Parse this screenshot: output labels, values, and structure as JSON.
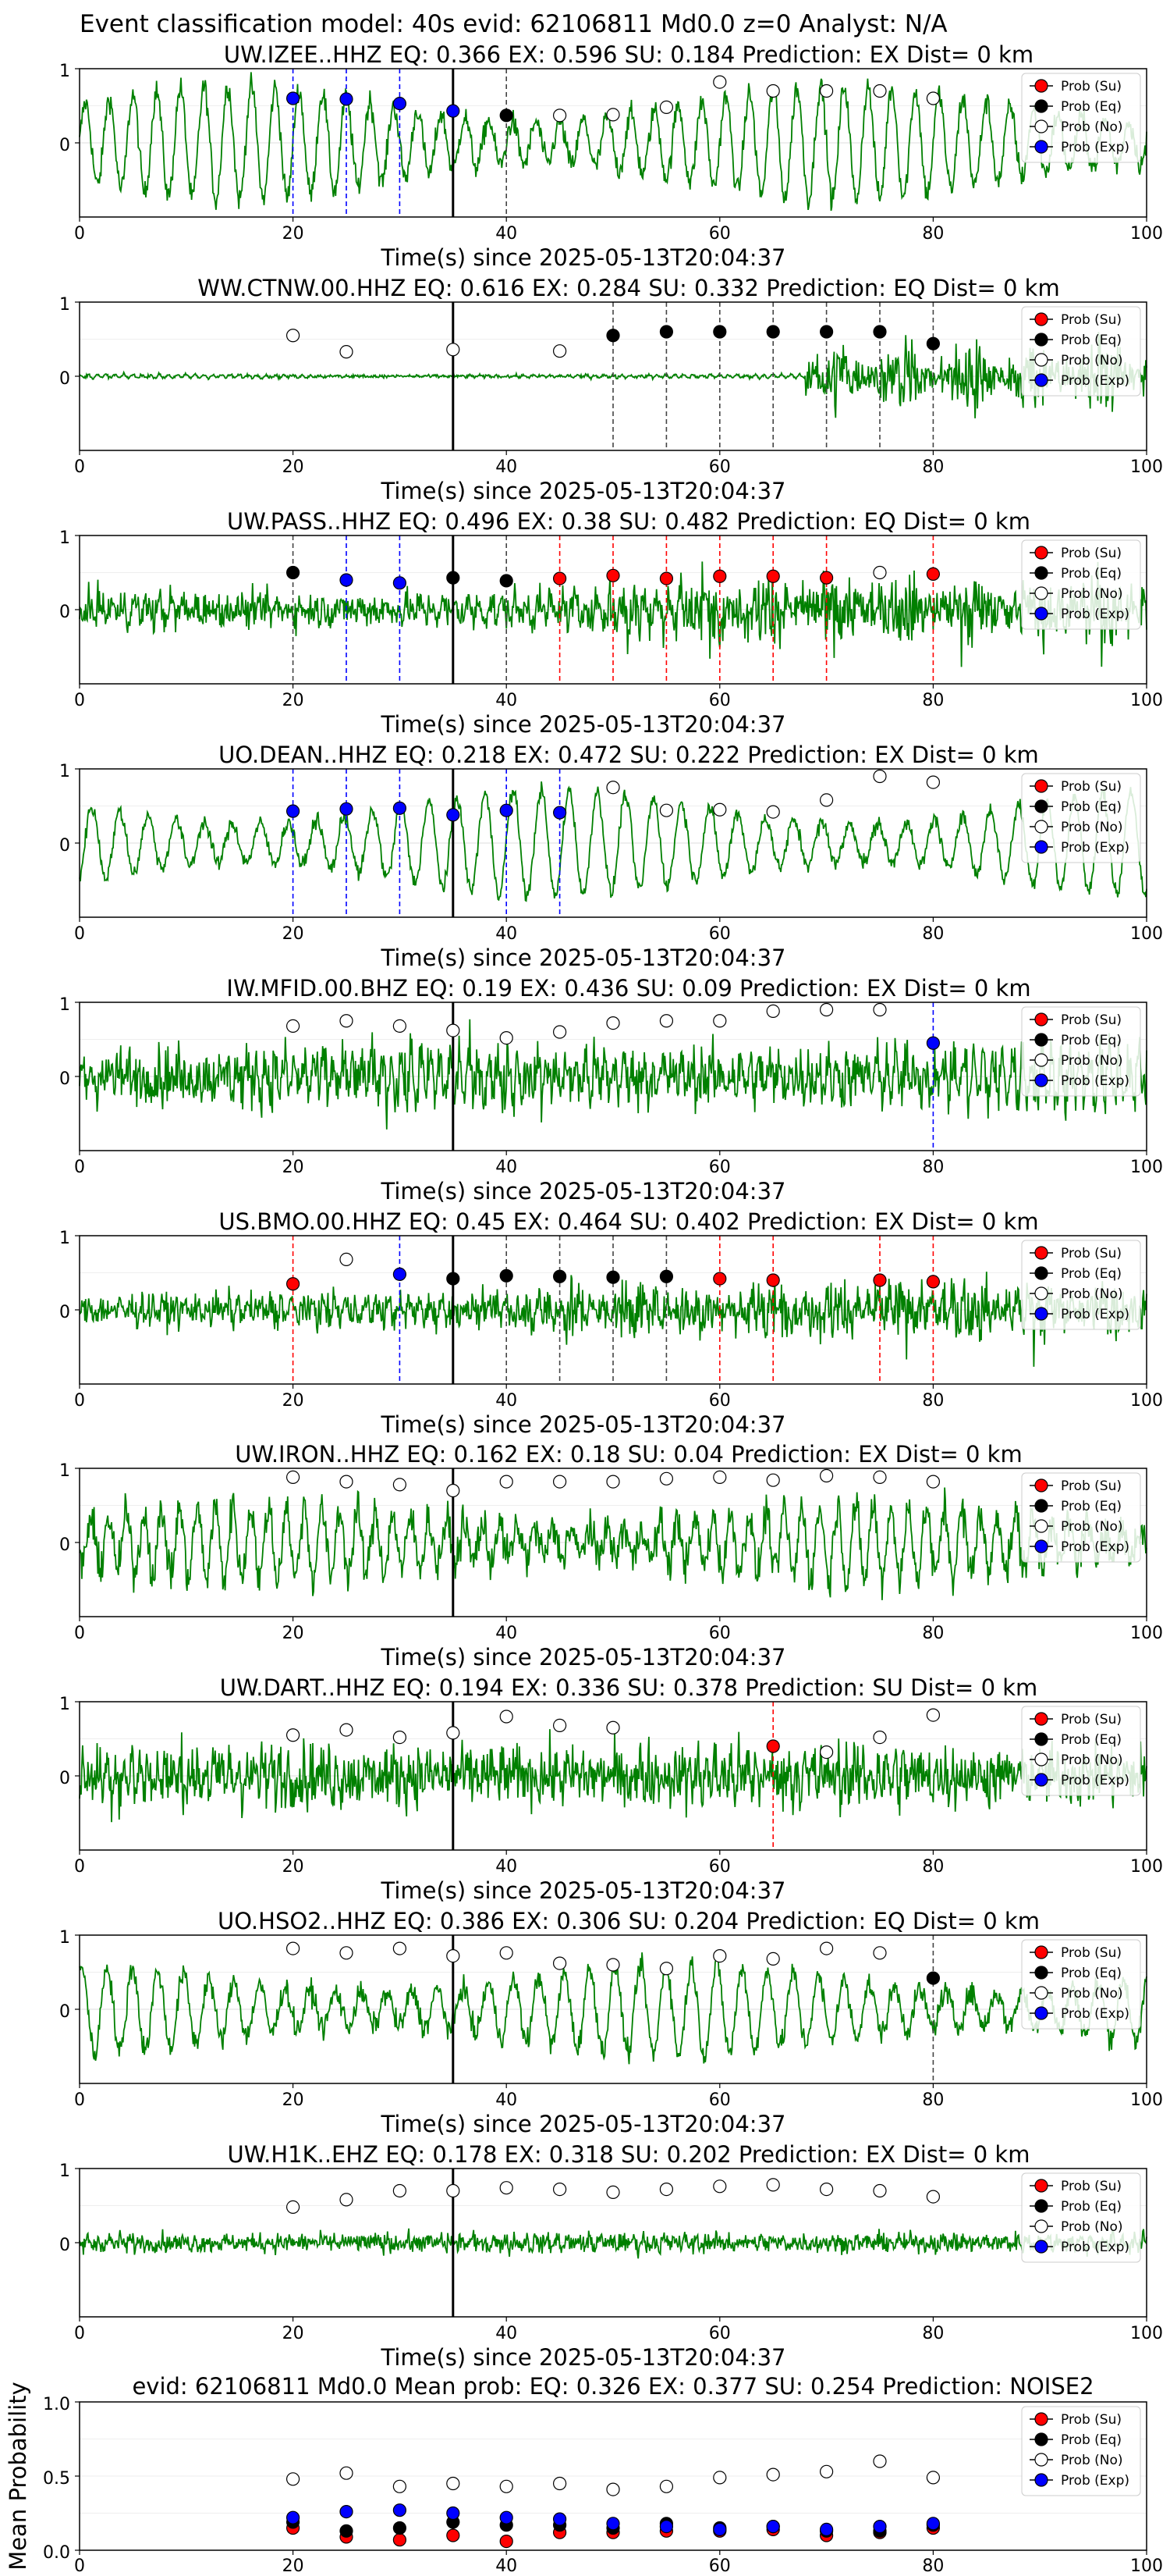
{
  "figure": {
    "suptitle": "Event classification model: 40s evid: 62106811 Md0.0 z=0 Analyst: N/A",
    "colors": {
      "waveform": "#008000",
      "su": "#ff0000",
      "eq": "#000000",
      "no": "#ffffff",
      "exp": "#0000ff",
      "axis": "#000000",
      "grid": "#dddddd"
    },
    "legend_entries": [
      "Prob (Su)",
      "Prob (Eq)",
      "Prob (No)",
      "Prob (Exp)"
    ]
  },
  "chart_data": [
    {
      "type": "line",
      "title": "UW.IZEE..HHZ   EQ: 0.366  EX: 0.596  SU: 0.184   Prediction: EX    Dist= 0 km",
      "xlabel": "Time(s) since 2025-05-13T20:04:37",
      "xlim": [
        0,
        100
      ],
      "ylim": [
        -1,
        1
      ],
      "x_ticks": [
        0,
        20,
        40,
        60,
        80,
        100
      ],
      "y_ticks": [
        1,
        0
      ],
      "legend_position": "top-right",
      "event_line_x": 35,
      "waveform": {
        "amplitude": 0.7,
        "noise": 0.15,
        "freq": 0.45,
        "clip_low": -0.98
      },
      "points": {
        "x": [
          20,
          25,
          30,
          35,
          40,
          45,
          50,
          55,
          60,
          65,
          70,
          75,
          80
        ],
        "y": [
          0.6,
          0.59,
          0.53,
          0.43,
          0.37,
          0.37,
          0.38,
          0.48,
          0.82,
          0.7,
          0.7,
          0.7,
          0.6
        ],
        "class": [
          "exp",
          "exp",
          "exp",
          "exp",
          "eq",
          "no",
          "no",
          "no",
          "no",
          "no",
          "no",
          "no",
          "no"
        ]
      },
      "dashed_lines": [
        {
          "x": 20,
          "class": "exp"
        },
        {
          "x": 25,
          "class": "exp"
        },
        {
          "x": 30,
          "class": "exp"
        },
        {
          "x": 40,
          "class": "eq"
        }
      ]
    },
    {
      "type": "line",
      "title": "WW.CTNW.00.HHZ   EQ: 0.616  EX: 0.284  SU: 0.332   Prediction: EQ    Dist= 0 km",
      "xlabel": "Time(s) since 2025-05-13T20:04:37",
      "xlim": [
        0,
        100
      ],
      "ylim": [
        -1,
        1
      ],
      "x_ticks": [
        0,
        20,
        40,
        60,
        80,
        100
      ],
      "y_ticks": [
        1,
        0
      ],
      "legend_position": "top-right",
      "event_line_x": 35,
      "waveform": {
        "amplitude": 0.02,
        "noise": 0.02,
        "freq": 1.2,
        "burst_start": 68,
        "burst_amp": 0.35,
        "clip_low": -0.98
      },
      "points": {
        "x": [
          20,
          25,
          35,
          45,
          50,
          55,
          60,
          65,
          70,
          75,
          80
        ],
        "y": [
          0.55,
          0.33,
          0.36,
          0.34,
          0.55,
          0.6,
          0.6,
          0.6,
          0.6,
          0.6,
          0.44
        ],
        "class": [
          "no",
          "no",
          "no",
          "no",
          "eq",
          "eq",
          "eq",
          "eq",
          "eq",
          "eq",
          "eq"
        ]
      },
      "dashed_lines": [
        {
          "x": 50,
          "class": "eq"
        },
        {
          "x": 55,
          "class": "eq"
        },
        {
          "x": 60,
          "class": "eq"
        },
        {
          "x": 65,
          "class": "eq"
        },
        {
          "x": 70,
          "class": "eq"
        },
        {
          "x": 75,
          "class": "eq"
        },
        {
          "x": 80,
          "class": "eq"
        }
      ]
    },
    {
      "type": "line",
      "title": "UW.PASS..HHZ   EQ: 0.496  EX: 0.38  SU: 0.482   Prediction: EQ    Dist= 0 km",
      "xlabel": "Time(s) since 2025-05-13T20:04:37",
      "xlim": [
        0,
        100
      ],
      "ylim": [
        -1,
        1
      ],
      "x_ticks": [
        0,
        20,
        40,
        60,
        80,
        100
      ],
      "y_ticks": [
        1,
        0
      ],
      "legend_position": "top-right",
      "event_line_x": 35,
      "waveform": {
        "amplitude": 0.12,
        "noise": 0.22,
        "freq": 0.9,
        "burst_start": 48,
        "burst_amp": 0.3,
        "clip_low": -0.98
      },
      "points": {
        "x": [
          20,
          25,
          30,
          35,
          40,
          45,
          50,
          55,
          60,
          65,
          70,
          75,
          80
        ],
        "y": [
          0.5,
          0.4,
          0.36,
          0.43,
          0.39,
          0.42,
          0.46,
          0.42,
          0.45,
          0.45,
          0.43,
          0.5,
          0.48
        ],
        "class": [
          "eq",
          "exp",
          "exp",
          "eq",
          "eq",
          "su",
          "su",
          "su",
          "su",
          "su",
          "su",
          "no",
          "su"
        ]
      },
      "dashed_lines": [
        {
          "x": 20,
          "class": "eq"
        },
        {
          "x": 25,
          "class": "exp"
        },
        {
          "x": 30,
          "class": "exp"
        },
        {
          "x": 40,
          "class": "eq"
        },
        {
          "x": 45,
          "class": "su"
        },
        {
          "x": 50,
          "class": "su"
        },
        {
          "x": 55,
          "class": "su"
        },
        {
          "x": 60,
          "class": "su"
        },
        {
          "x": 65,
          "class": "su"
        },
        {
          "x": 70,
          "class": "su"
        },
        {
          "x": 80,
          "class": "su"
        }
      ]
    },
    {
      "type": "line",
      "title": "UO.DEAN..HHZ   EQ: 0.218  EX: 0.472  SU: 0.222   Prediction: EX    Dist= 0 km",
      "xlabel": "Time(s) since 2025-05-13T20:04:37",
      "xlim": [
        0,
        100
      ],
      "ylim": [
        -1,
        1
      ],
      "x_ticks": [
        0,
        20,
        40,
        60,
        80,
        100
      ],
      "y_ticks": [
        1,
        0
      ],
      "legend_position": "top-right",
      "event_line_x": 35,
      "waveform": {
        "amplitude": 0.65,
        "noise": 0.1,
        "freq": 0.38,
        "clip_low": -0.98
      },
      "points": {
        "x": [
          20,
          25,
          30,
          35,
          40,
          45,
          50,
          55,
          60,
          65,
          70,
          75,
          80
        ],
        "y": [
          0.43,
          0.46,
          0.47,
          0.38,
          0.44,
          0.41,
          0.75,
          0.44,
          0.45,
          0.42,
          0.58,
          0.9,
          0.82
        ],
        "class": [
          "exp",
          "exp",
          "exp",
          "exp",
          "exp",
          "exp",
          "no",
          "no",
          "no",
          "no",
          "no",
          "no",
          "no"
        ]
      },
      "dashed_lines": [
        {
          "x": 20,
          "class": "exp"
        },
        {
          "x": 25,
          "class": "exp"
        },
        {
          "x": 30,
          "class": "exp"
        },
        {
          "x": 40,
          "class": "exp"
        },
        {
          "x": 45,
          "class": "exp"
        }
      ]
    },
    {
      "type": "line",
      "title": "IW.MFID.00.BHZ   EQ: 0.19  EX: 0.436  SU: 0.09   Prediction: EX    Dist= 0 km",
      "xlabel": "Time(s) since 2025-05-13T20:04:37",
      "xlim": [
        0,
        100
      ],
      "ylim": [
        -1,
        1
      ],
      "x_ticks": [
        0,
        20,
        40,
        60,
        80,
        100
      ],
      "y_ticks": [
        1,
        0
      ],
      "legend_position": "top-right",
      "event_line_x": 35,
      "waveform": {
        "amplitude": 0.25,
        "noise": 0.35,
        "freq": 1.1,
        "clip_low": -0.98
      },
      "points": {
        "x": [
          20,
          25,
          30,
          35,
          40,
          45,
          50,
          55,
          60,
          65,
          70,
          75,
          80
        ],
        "y": [
          0.68,
          0.75,
          0.68,
          0.62,
          0.52,
          0.6,
          0.72,
          0.75,
          0.75,
          0.88,
          0.9,
          0.9,
          0.45
        ],
        "class": [
          "no",
          "no",
          "no",
          "no",
          "no",
          "no",
          "no",
          "no",
          "no",
          "no",
          "no",
          "no",
          "exp"
        ]
      },
      "dashed_lines": [
        {
          "x": 80,
          "class": "exp"
        }
      ]
    },
    {
      "type": "line",
      "title": "US.BMO.00.HHZ   EQ: 0.45  EX: 0.464  SU: 0.402   Prediction: EX    Dist= 0 km",
      "xlabel": "Time(s) since 2025-05-13T20:04:37",
      "xlim": [
        0,
        100
      ],
      "ylim": [
        -1,
        1
      ],
      "x_ticks": [
        0,
        20,
        40,
        60,
        80,
        100
      ],
      "y_ticks": [
        1,
        0
      ],
      "legend_position": "top-right",
      "event_line_x": 35,
      "waveform": {
        "amplitude": 0.1,
        "noise": 0.2,
        "freq": 1.0,
        "burst_start": 40,
        "burst_amp": 0.25,
        "clip_low": -0.98
      },
      "points": {
        "x": [
          20,
          25,
          30,
          35,
          40,
          45,
          50,
          55,
          60,
          65,
          75,
          80
        ],
        "y": [
          0.35,
          0.68,
          0.48,
          0.42,
          0.46,
          0.45,
          0.44,
          0.45,
          0.42,
          0.4,
          0.4,
          0.38
        ],
        "class": [
          "su",
          "no",
          "exp",
          "eq",
          "eq",
          "eq",
          "eq",
          "eq",
          "su",
          "su",
          "su",
          "su"
        ]
      },
      "dashed_lines": [
        {
          "x": 20,
          "class": "su"
        },
        {
          "x": 30,
          "class": "exp"
        },
        {
          "x": 40,
          "class": "eq"
        },
        {
          "x": 45,
          "class": "eq"
        },
        {
          "x": 50,
          "class": "eq"
        },
        {
          "x": 55,
          "class": "eq"
        },
        {
          "x": 60,
          "class": "su"
        },
        {
          "x": 65,
          "class": "su"
        },
        {
          "x": 75,
          "class": "su"
        },
        {
          "x": 80,
          "class": "su"
        }
      ]
    },
    {
      "type": "line",
      "title": "UW.IRON..HHZ   EQ: 0.162  EX: 0.18  SU: 0.04   Prediction: EX    Dist= 0 km",
      "xlabel": "Time(s) since 2025-05-13T20:04:37",
      "xlim": [
        0,
        100
      ],
      "ylim": [
        -1,
        1
      ],
      "x_ticks": [
        0,
        20,
        40,
        60,
        80,
        100
      ],
      "y_ticks": [
        1,
        0
      ],
      "legend_position": "top-right",
      "event_line_x": 35,
      "waveform": {
        "amplitude": 0.45,
        "noise": 0.25,
        "freq": 0.6,
        "clip_low": -0.98
      },
      "points": {
        "x": [
          20,
          25,
          30,
          35,
          40,
          45,
          50,
          55,
          60,
          65,
          70,
          75,
          80
        ],
        "y": [
          0.88,
          0.82,
          0.78,
          0.7,
          0.82,
          0.82,
          0.82,
          0.86,
          0.88,
          0.84,
          0.9,
          0.88,
          0.82
        ],
        "class": [
          "no",
          "no",
          "no",
          "no",
          "no",
          "no",
          "no",
          "no",
          "no",
          "no",
          "no",
          "no",
          "no"
        ]
      },
      "dashed_lines": []
    },
    {
      "type": "line",
      "title": "UW.DART..HHZ   EQ: 0.194  EX: 0.336  SU: 0.378   Prediction: SU    Dist= 0 km",
      "xlabel": "Time(s) since 2025-05-13T20:04:37",
      "xlim": [
        0,
        100
      ],
      "ylim": [
        -1,
        1
      ],
      "x_ticks": [
        0,
        20,
        40,
        60,
        80,
        100
      ],
      "y_ticks": [
        1,
        0
      ],
      "legend_position": "top-right",
      "event_line_x": 35,
      "waveform": {
        "amplitude": 0.15,
        "noise": 0.38,
        "freq": 1.3,
        "clip_low": -0.98
      },
      "points": {
        "x": [
          20,
          25,
          30,
          35,
          40,
          45,
          50,
          65,
          70,
          75,
          80
        ],
        "y": [
          0.55,
          0.62,
          0.52,
          0.58,
          0.8,
          0.68,
          0.65,
          0.4,
          0.32,
          0.52,
          0.82
        ],
        "class": [
          "no",
          "no",
          "no",
          "no",
          "no",
          "no",
          "no",
          "su",
          "no",
          "no",
          "no"
        ]
      },
      "dashed_lines": [
        {
          "x": 65,
          "class": "su"
        }
      ]
    },
    {
      "type": "line",
      "title": "UO.HSO2..HHZ   EQ: 0.386  EX: 0.306  SU: 0.204   Prediction: EQ    Dist= 0 km",
      "xlabel": "Time(s) since 2025-05-13T20:04:37",
      "xlim": [
        0,
        100
      ],
      "ylim": [
        -1,
        1
      ],
      "x_ticks": [
        0,
        20,
        40,
        60,
        80,
        100
      ],
      "y_ticks": [
        1,
        0
      ],
      "legend_position": "top-right",
      "event_line_x": 35,
      "waveform": {
        "amplitude": 0.55,
        "noise": 0.15,
        "freq": 0.42,
        "clip_low": -0.98
      },
      "points": {
        "x": [
          20,
          25,
          30,
          35,
          40,
          45,
          50,
          55,
          60,
          65,
          70,
          75,
          80
        ],
        "y": [
          0.82,
          0.76,
          0.82,
          0.72,
          0.76,
          0.62,
          0.6,
          0.55,
          0.72,
          0.68,
          0.82,
          0.76,
          0.42
        ],
        "class": [
          "no",
          "no",
          "no",
          "no",
          "no",
          "no",
          "no",
          "no",
          "no",
          "no",
          "no",
          "no",
          "eq"
        ]
      },
      "dashed_lines": [
        {
          "x": 80,
          "class": "eq"
        }
      ]
    },
    {
      "type": "line",
      "title": "UW.H1K..EHZ   EQ: 0.178  EX: 0.318  SU: 0.202   Prediction: EX    Dist= 0 km",
      "xlabel": "Time(s) since 2025-05-13T20:04:37",
      "xlim": [
        0,
        100
      ],
      "ylim": [
        -1,
        1
      ],
      "x_ticks": [
        0,
        20,
        40,
        60,
        80,
        100
      ],
      "y_ticks": [
        1,
        0
      ],
      "legend_position": "top-right",
      "event_line_x": 35,
      "waveform": {
        "amplitude": 0.05,
        "noise": 0.12,
        "freq": 1.0,
        "clip_low": -0.98
      },
      "points": {
        "x": [
          20,
          25,
          30,
          35,
          40,
          45,
          50,
          55,
          60,
          65,
          70,
          75,
          80
        ],
        "y": [
          0.48,
          0.58,
          0.7,
          0.7,
          0.74,
          0.72,
          0.68,
          0.72,
          0.76,
          0.78,
          0.72,
          0.7,
          0.62
        ],
        "class": [
          "no",
          "no",
          "no",
          "no",
          "no",
          "no",
          "no",
          "no",
          "no",
          "no",
          "no",
          "no",
          "no"
        ]
      },
      "dashed_lines": []
    },
    {
      "type": "scatter",
      "title": "evid: 62106811  Md0.0   Mean prob:   EQ: 0.326  EX: 0.377  SU: 0.254   Prediction: NOISE2",
      "ylabel": "Mean Probability",
      "xlim": [
        0,
        100
      ],
      "ylim": [
        0,
        1
      ],
      "x_ticks": [
        0,
        20,
        40,
        60,
        80,
        100
      ],
      "y_ticks": [
        0.0,
        0.5,
        1.0
      ],
      "y_tick_labels": [
        "0.0",
        "0.5",
        "1.0"
      ],
      "legend_position": "top-right",
      "series": [
        {
          "name": "Prob (Su)",
          "class": "su",
          "x": [
            20,
            25,
            30,
            35,
            40,
            45,
            50,
            55,
            60,
            65,
            70,
            75,
            80
          ],
          "y": [
            0.15,
            0.09,
            0.07,
            0.1,
            0.06,
            0.12,
            0.12,
            0.13,
            0.13,
            0.14,
            0.1,
            0.12,
            0.15
          ]
        },
        {
          "name": "Prob (Eq)",
          "class": "eq",
          "x": [
            20,
            25,
            30,
            35,
            40,
            45,
            50,
            55,
            60,
            65,
            70,
            75,
            80
          ],
          "y": [
            0.19,
            0.13,
            0.15,
            0.19,
            0.17,
            0.17,
            0.15,
            0.18,
            0.15,
            0.16,
            0.13,
            0.13,
            0.17
          ]
        },
        {
          "name": "Prob (No)",
          "class": "no",
          "x": [
            20,
            25,
            30,
            35,
            40,
            45,
            50,
            55,
            60,
            65,
            70,
            75,
            80
          ],
          "y": [
            0.48,
            0.52,
            0.43,
            0.45,
            0.43,
            0.45,
            0.41,
            0.43,
            0.49,
            0.51,
            0.53,
            0.6,
            0.49
          ]
        },
        {
          "name": "Prob (Exp)",
          "class": "exp",
          "x": [
            20,
            25,
            30,
            35,
            40,
            45,
            50,
            55,
            60,
            65,
            70,
            75,
            80
          ],
          "y": [
            0.22,
            0.26,
            0.27,
            0.25,
            0.22,
            0.21,
            0.18,
            0.16,
            0.14,
            0.16,
            0.14,
            0.16,
            0.18
          ]
        }
      ]
    }
  ]
}
